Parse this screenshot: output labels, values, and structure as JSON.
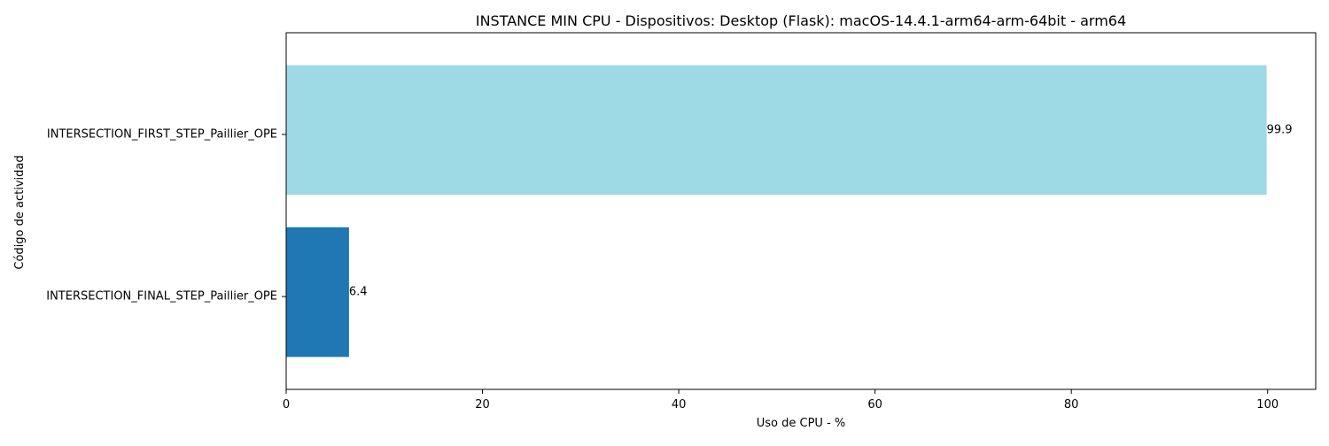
{
  "chart_data": {
    "type": "bar",
    "orientation": "horizontal",
    "title": "INSTANCE MIN CPU - Dispositivos: Desktop (Flask): macOS-14.4.1-arm64-arm-64bit - arm64",
    "xlabel": "Uso de CPU - %",
    "ylabel": "Código de actividad",
    "xlim": [
      0,
      104.9
    ],
    "xticks": [
      0,
      20,
      40,
      60,
      80,
      100
    ],
    "grid": false,
    "legend": "none",
    "bars": [
      {
        "category": "INTERSECTION_FIRST_STEP_Paillier_OPE",
        "value": 99.9,
        "label": "99.9",
        "color": "#9edae5"
      },
      {
        "category": "INTERSECTION_FINAL_STEP_Paillier_OPE",
        "value": 6.4,
        "label": "6.4",
        "color": "#1f77b4"
      }
    ]
  }
}
